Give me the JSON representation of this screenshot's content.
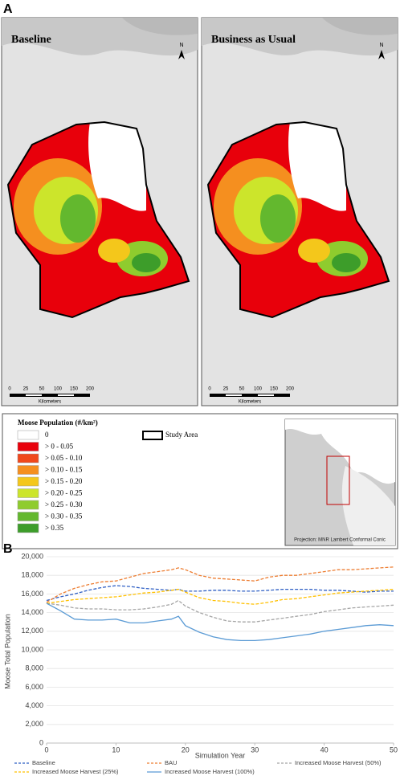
{
  "panel_a": {
    "label": "A",
    "maps": [
      {
        "title": "Baseline"
      },
      {
        "title": "Business as Usual"
      }
    ],
    "north": "N",
    "scale_bar": {
      "labels": [
        "0",
        "25",
        "50",
        "100",
        "150",
        "200"
      ],
      "unit": "Kilometers"
    },
    "legend": {
      "title": "Moose Population (#/km²)",
      "items": [
        {
          "label": "0",
          "color": "#ffffff"
        },
        {
          "label": "> 0 - 0.05",
          "color": "#e8000b"
        },
        {
          "label": "> 0.05 - 0.10",
          "color": "#f0481c"
        },
        {
          "label": "> 0.10 - 0.15",
          "color": "#f58f1f"
        },
        {
          "label": "> 0.15 - 0.20",
          "color": "#f4c71b"
        },
        {
          "label": "> 0.20 - 0.25",
          "color": "#cce52b"
        },
        {
          "label": "> 0.25 - 0.30",
          "color": "#8fcc2e"
        },
        {
          "label": "> 0.30 - 0.35",
          "color": "#63b82e"
        },
        {
          "label": "> 0.35",
          "color": "#3d9d2a"
        }
      ],
      "study_area": "Study Area"
    },
    "projection": "Projection: MNR Lambert Conformal Conic"
  },
  "chart_data": {
    "type": "line",
    "label": "B",
    "xlabel": "Simulation Year",
    "ylabel": "Moose Total Population",
    "x": [
      0,
      2,
      4,
      6,
      8,
      10,
      12,
      14,
      16,
      18,
      19,
      20,
      22,
      24,
      26,
      28,
      30,
      32,
      34,
      36,
      38,
      40,
      42,
      44,
      46,
      48,
      50
    ],
    "series": [
      {
        "name": "Baseline",
        "color": "#2f5fc4",
        "dashed": true,
        "values": [
          15300,
          15700,
          16000,
          16400,
          16700,
          16900,
          16800,
          16600,
          16500,
          16400,
          16500,
          16300,
          16300,
          16400,
          16400,
          16300,
          16300,
          16400,
          16500,
          16500,
          16500,
          16400,
          16400,
          16300,
          16200,
          16300,
          16300
        ]
      },
      {
        "name": "BAU",
        "color": "#ed7d31",
        "dashed": true,
        "values": [
          15100,
          16000,
          16600,
          17000,
          17300,
          17400,
          17800,
          18200,
          18400,
          18600,
          18800,
          18600,
          18000,
          17700,
          17600,
          17500,
          17400,
          17800,
          18000,
          18000,
          18200,
          18400,
          18600,
          18600,
          18700,
          18800,
          18900
        ]
      },
      {
        "name": "Increased Moose Harvest (50%)",
        "color": "#a5a5a5",
        "dashed": true,
        "values": [
          15000,
          14800,
          14500,
          14400,
          14400,
          14300,
          14300,
          14400,
          14600,
          14900,
          15300,
          14700,
          14000,
          13500,
          13100,
          13000,
          13000,
          13200,
          13400,
          13600,
          13800,
          14100,
          14300,
          14500,
          14600,
          14700,
          14800
        ]
      },
      {
        "name": "Increased Moose Harvest (25%)",
        "color": "#ffc000",
        "dashed": true,
        "values": [
          15000,
          15200,
          15400,
          15500,
          15600,
          15700,
          15900,
          16100,
          16200,
          16400,
          16500,
          16200,
          15600,
          15300,
          15200,
          15000,
          14900,
          15100,
          15400,
          15500,
          15700,
          15900,
          16100,
          16200,
          16300,
          16400,
          16500
        ]
      },
      {
        "name": "Increased Moose Harvest (100%)",
        "color": "#5b9bd5",
        "dashed": false,
        "values": [
          15000,
          14200,
          13300,
          13200,
          13200,
          13300,
          12900,
          12900,
          13100,
          13300,
          13600,
          12600,
          11900,
          11400,
          11100,
          11000,
          11000,
          11100,
          11300,
          11500,
          11700,
          12000,
          12200,
          12400,
          12600,
          12700,
          12600
        ]
      }
    ],
    "xlim": [
      0,
      50
    ],
    "xticks": [
      0,
      10,
      20,
      30,
      40,
      50
    ],
    "ylim": [
      0,
      20000
    ],
    "yticks": [
      0,
      {
        "value": 2000,
        "label": "2,000"
      },
      {
        "value": 4000,
        "label": "4,000"
      },
      {
        "value": 6000,
        "label": "6,000"
      },
      {
        "value": 8000,
        "label": "8,000"
      },
      {
        "value": 10000,
        "label": "10,000"
      },
      {
        "value": 12000,
        "label": "12,000"
      },
      {
        "value": 14000,
        "label": "14,000"
      },
      {
        "value": 16000,
        "label": "16,000"
      },
      {
        "value": 18000,
        "label": "18,000"
      },
      {
        "value": 20000,
        "label": "20,000"
      }
    ],
    "grid": true
  }
}
